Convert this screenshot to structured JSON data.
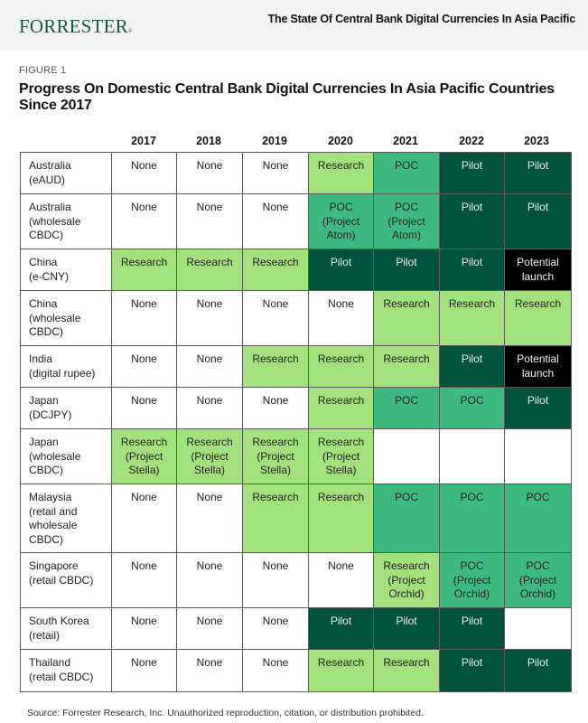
{
  "header": {
    "logo": "FORRESTER",
    "doc_title": "The State Of Central Bank Digital Currencies In Asia Pacific"
  },
  "figure": {
    "label": "FIGURE 1",
    "title": "Progress On Domestic Central Bank Digital Currencies In Asia Pacific Countries Since 2017"
  },
  "colors": {
    "none": "#ffffff",
    "research": "#a3e07e",
    "poc": "#3dba80",
    "pilot": "#02533b",
    "potential_launch": "#000000",
    "brand": "#0e5a3e"
  },
  "table": {
    "years": [
      "2017",
      "2018",
      "2019",
      "2020",
      "2021",
      "2022",
      "2023"
    ],
    "rows": [
      {
        "label": "Australia (eAUD)",
        "label_lines": [
          "Australia",
          "(eAUD)"
        ],
        "cells": [
          "None",
          "None",
          "None",
          "Research",
          "POC",
          "Pilot",
          "Pilot"
        ]
      },
      {
        "label": "Australia (wholesale CBDC)",
        "label_lines": [
          "Australia",
          "(wholesale",
          "CBDC)"
        ],
        "cells": [
          "None",
          "None",
          "None",
          "POC (Project Atom)",
          "POC (Project Atom)",
          "Pilot",
          "Pilot"
        ]
      },
      {
        "label": "China (e-CNY)",
        "label_lines": [
          "China",
          "(e-CNY)"
        ],
        "cells": [
          "Research",
          "Research",
          "Research",
          "Pilot",
          "Pilot",
          "Pilot",
          "Potential launch"
        ]
      },
      {
        "label": "China (wholesale CBDC)",
        "label_lines": [
          "China",
          "(wholesale",
          "CBDC)"
        ],
        "cells": [
          "None",
          "None",
          "None",
          "None",
          "Research",
          "Research",
          "Research"
        ]
      },
      {
        "label": "India (digital rupee)",
        "label_lines": [
          "India",
          "(digital rupee)"
        ],
        "cells": [
          "None",
          "None",
          "Research",
          "Research",
          "Research",
          "Pilot",
          "Potential launch"
        ]
      },
      {
        "label": "Japan (DCJPY)",
        "label_lines": [
          "Japan",
          "(DCJPY)"
        ],
        "cells": [
          "None",
          "None",
          "None",
          "Research",
          "POC",
          "POC",
          "Pilot"
        ]
      },
      {
        "label": "Japan (wholesale CBDC)",
        "label_lines": [
          "Japan",
          "(wholesale",
          "CBDC)"
        ],
        "cells": [
          "Research (Project Stella)",
          "Research (Project Stella)",
          "Research (Project Stella)",
          "Research (Project Stella)",
          "",
          "",
          ""
        ]
      },
      {
        "label": "Malaysia (retail and wholesale CBDC)",
        "label_lines": [
          "Malaysia",
          "(retail and",
          "wholesale",
          "CBDC)"
        ],
        "cells": [
          "None",
          "None",
          "Research",
          "Research",
          "POC",
          "POC",
          "POC"
        ]
      },
      {
        "label": "Singapore (retail CBDC)",
        "label_lines": [
          "Singapore",
          "(retail CBDC)"
        ],
        "cells": [
          "None",
          "None",
          "None",
          "None",
          "Research (Project Orchid)",
          "POC (Project Orchid)",
          "POC (Project Orchid)"
        ]
      },
      {
        "label": "South Korea (retail)",
        "label_lines": [
          "South Korea",
          "(retail)"
        ],
        "cells": [
          "None",
          "None",
          "None",
          "Pilot",
          "Pilot",
          "Pilot",
          ""
        ]
      },
      {
        "label": "Thailand (retail CBDC)",
        "label_lines": [
          "Thailand",
          "(retail CBDC)"
        ],
        "cells": [
          "None",
          "None",
          "None",
          "Research",
          "Research",
          "Pilot",
          "Pilot"
        ]
      }
    ]
  },
  "source": "Source: Forrester Research, Inc. Unauthorized reproduction, citation, or distribution prohibited."
}
